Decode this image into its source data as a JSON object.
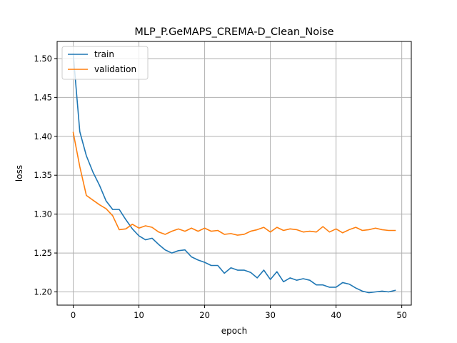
{
  "chart_data": {
    "type": "line",
    "title": "MLP_P.GeMAPS_CREMA-D_Clean_Noise",
    "xlabel": "epoch",
    "ylabel": "loss",
    "xlim": [
      -2.45,
      51.45
    ],
    "ylim": [
      1.183,
      1.522
    ],
    "xticks": [
      0,
      10,
      20,
      30,
      40,
      50
    ],
    "yticks": [
      1.2,
      1.25,
      1.3,
      1.35,
      1.4,
      1.45,
      1.5
    ],
    "grid": true,
    "legend_position": "upper-left",
    "x": [
      0,
      1,
      2,
      3,
      4,
      5,
      6,
      7,
      8,
      9,
      10,
      11,
      12,
      13,
      14,
      15,
      16,
      17,
      18,
      19,
      20,
      21,
      22,
      23,
      24,
      25,
      26,
      27,
      28,
      29,
      30,
      31,
      32,
      33,
      34,
      35,
      36,
      37,
      38,
      39,
      40,
      41,
      42,
      43,
      44,
      45,
      46,
      47,
      48,
      49
    ],
    "series": [
      {
        "name": "train",
        "color": "#1f77b4",
        "values": [
          1.506,
          1.406,
          1.375,
          1.354,
          1.337,
          1.317,
          1.306,
          1.306,
          1.293,
          1.281,
          1.272,
          1.267,
          1.269,
          1.261,
          1.254,
          1.25,
          1.253,
          1.254,
          1.245,
          1.241,
          1.238,
          1.234,
          1.234,
          1.224,
          1.231,
          1.228,
          1.228,
          1.225,
          1.218,
          1.228,
          1.216,
          1.226,
          1.213,
          1.218,
          1.215,
          1.217,
          1.215,
          1.209,
          1.209,
          1.206,
          1.206,
          1.212,
          1.21,
          1.205,
          1.201,
          1.199,
          1.2,
          1.201,
          1.2,
          1.202
        ]
      },
      {
        "name": "validation",
        "color": "#ff7f0e",
        "values": [
          1.405,
          1.361,
          1.324,
          1.318,
          1.312,
          1.307,
          1.298,
          1.28,
          1.281,
          1.287,
          1.282,
          1.285,
          1.283,
          1.277,
          1.274,
          1.278,
          1.281,
          1.278,
          1.282,
          1.278,
          1.282,
          1.278,
          1.279,
          1.274,
          1.275,
          1.273,
          1.274,
          1.278,
          1.28,
          1.283,
          1.277,
          1.283,
          1.279,
          1.281,
          1.28,
          1.277,
          1.278,
          1.277,
          1.284,
          1.277,
          1.281,
          1.276,
          1.28,
          1.283,
          1.279,
          1.28,
          1.282,
          1.28,
          1.279,
          1.279
        ]
      }
    ]
  }
}
